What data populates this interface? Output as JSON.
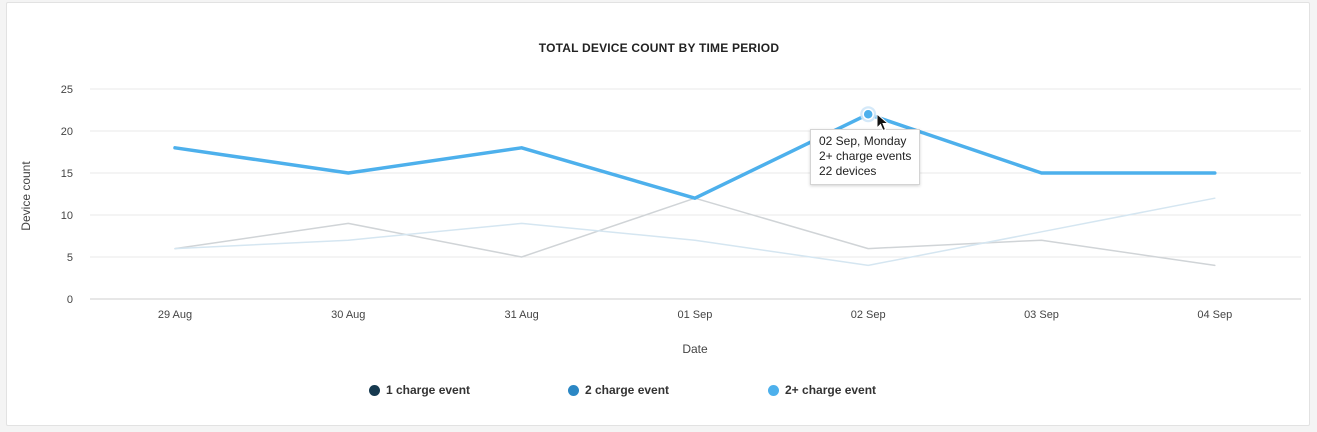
{
  "chart_data": {
    "type": "line",
    "title": "TOTAL DEVICE COUNT BY TIME PERIOD",
    "xlabel": "Date",
    "ylabel": "Device count",
    "ylim": [
      0,
      25
    ],
    "yticks": [
      0,
      5,
      10,
      15,
      20,
      25
    ],
    "categories": [
      "29 Aug",
      "30 Aug",
      "31 Aug",
      "01 Sep",
      "02 Sep",
      "03 Sep",
      "04 Sep"
    ],
    "grid": true,
    "legend_position": "bottom",
    "series": [
      {
        "name": "1 charge event",
        "values": [
          6,
          9,
          5,
          12,
          6,
          7,
          4
        ],
        "color": "#16394f"
      },
      {
        "name": "2 charge event",
        "values": [
          6,
          7,
          9,
          7,
          4,
          8,
          12
        ],
        "color": "#2b87c4"
      },
      {
        "name": "2+ charge event",
        "values": [
          18,
          15,
          18,
          12,
          22,
          15,
          15
        ],
        "color": "#4db0ec"
      }
    ],
    "highlighted": {
      "series": 2,
      "index": 4
    },
    "tooltip": {
      "line1": "02 Sep, Monday",
      "line2": "2+ charge events",
      "line3": "22 devices"
    }
  }
}
